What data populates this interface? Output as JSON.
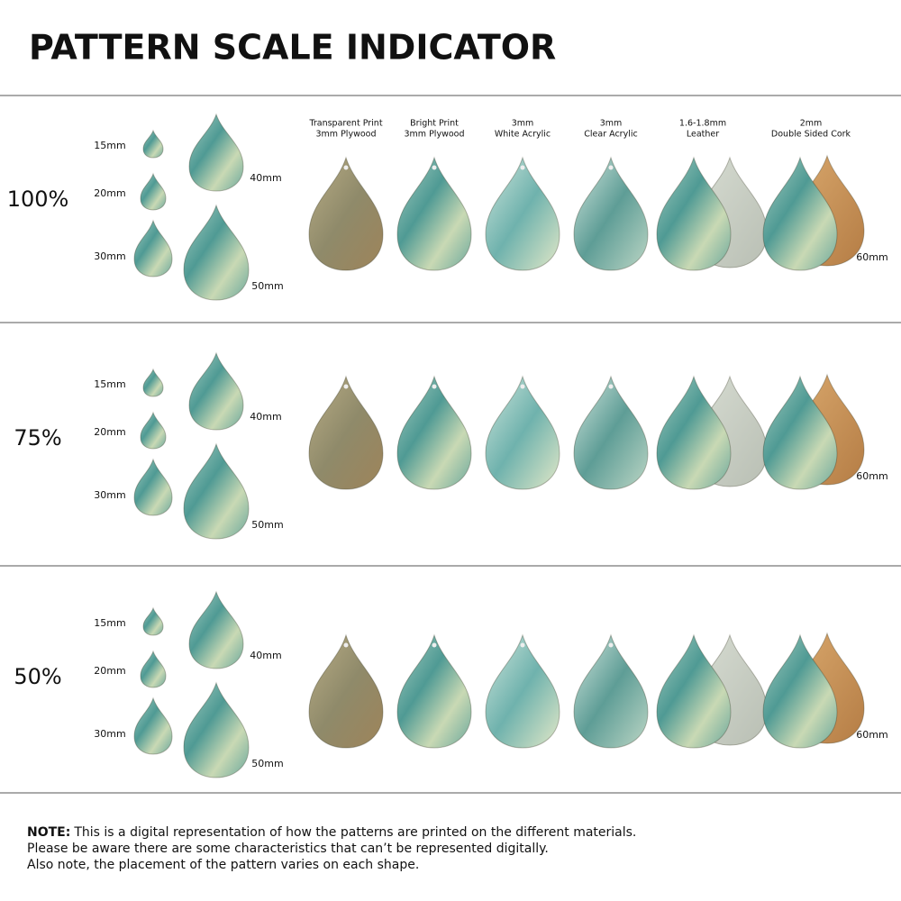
{
  "header": {
    "title": "PATTERN SCALE INDICATOR"
  },
  "materials": [
    {
      "lines": [
        "Transparent Print",
        "3mm Plywood"
      ]
    },
    {
      "lines": [
        "Bright Print",
        "3mm Plywood"
      ]
    },
    {
      "lines": [
        "3mm",
        "White Acrylic"
      ]
    },
    {
      "lines": [
        "3mm",
        "Clear Acrylic"
      ]
    },
    {
      "lines": [
        "1.6-1.8mm",
        "Leather"
      ]
    },
    {
      "lines": [
        "2mm",
        "Double Sided Cork"
      ]
    }
  ],
  "rows": [
    {
      "scale": "100%",
      "sizes": [
        "15mm",
        "20mm",
        "30mm",
        "40mm",
        "50mm",
        "60mm"
      ]
    },
    {
      "scale": "75%",
      "sizes": [
        "15mm",
        "20mm",
        "30mm",
        "40mm",
        "50mm",
        "60mm"
      ]
    },
    {
      "scale": "50%",
      "sizes": [
        "15mm",
        "20mm",
        "30mm",
        "40mm",
        "50mm",
        "60mm"
      ]
    }
  ],
  "note": {
    "label": "NOTE:",
    "lines": [
      "This is a digital representation of how the patterns are printed on the different materials.",
      "Please be aware there are some characteristics that can’t be represented digitally.",
      "Also note, the placement of the pattern varies on each shape."
    ]
  }
}
